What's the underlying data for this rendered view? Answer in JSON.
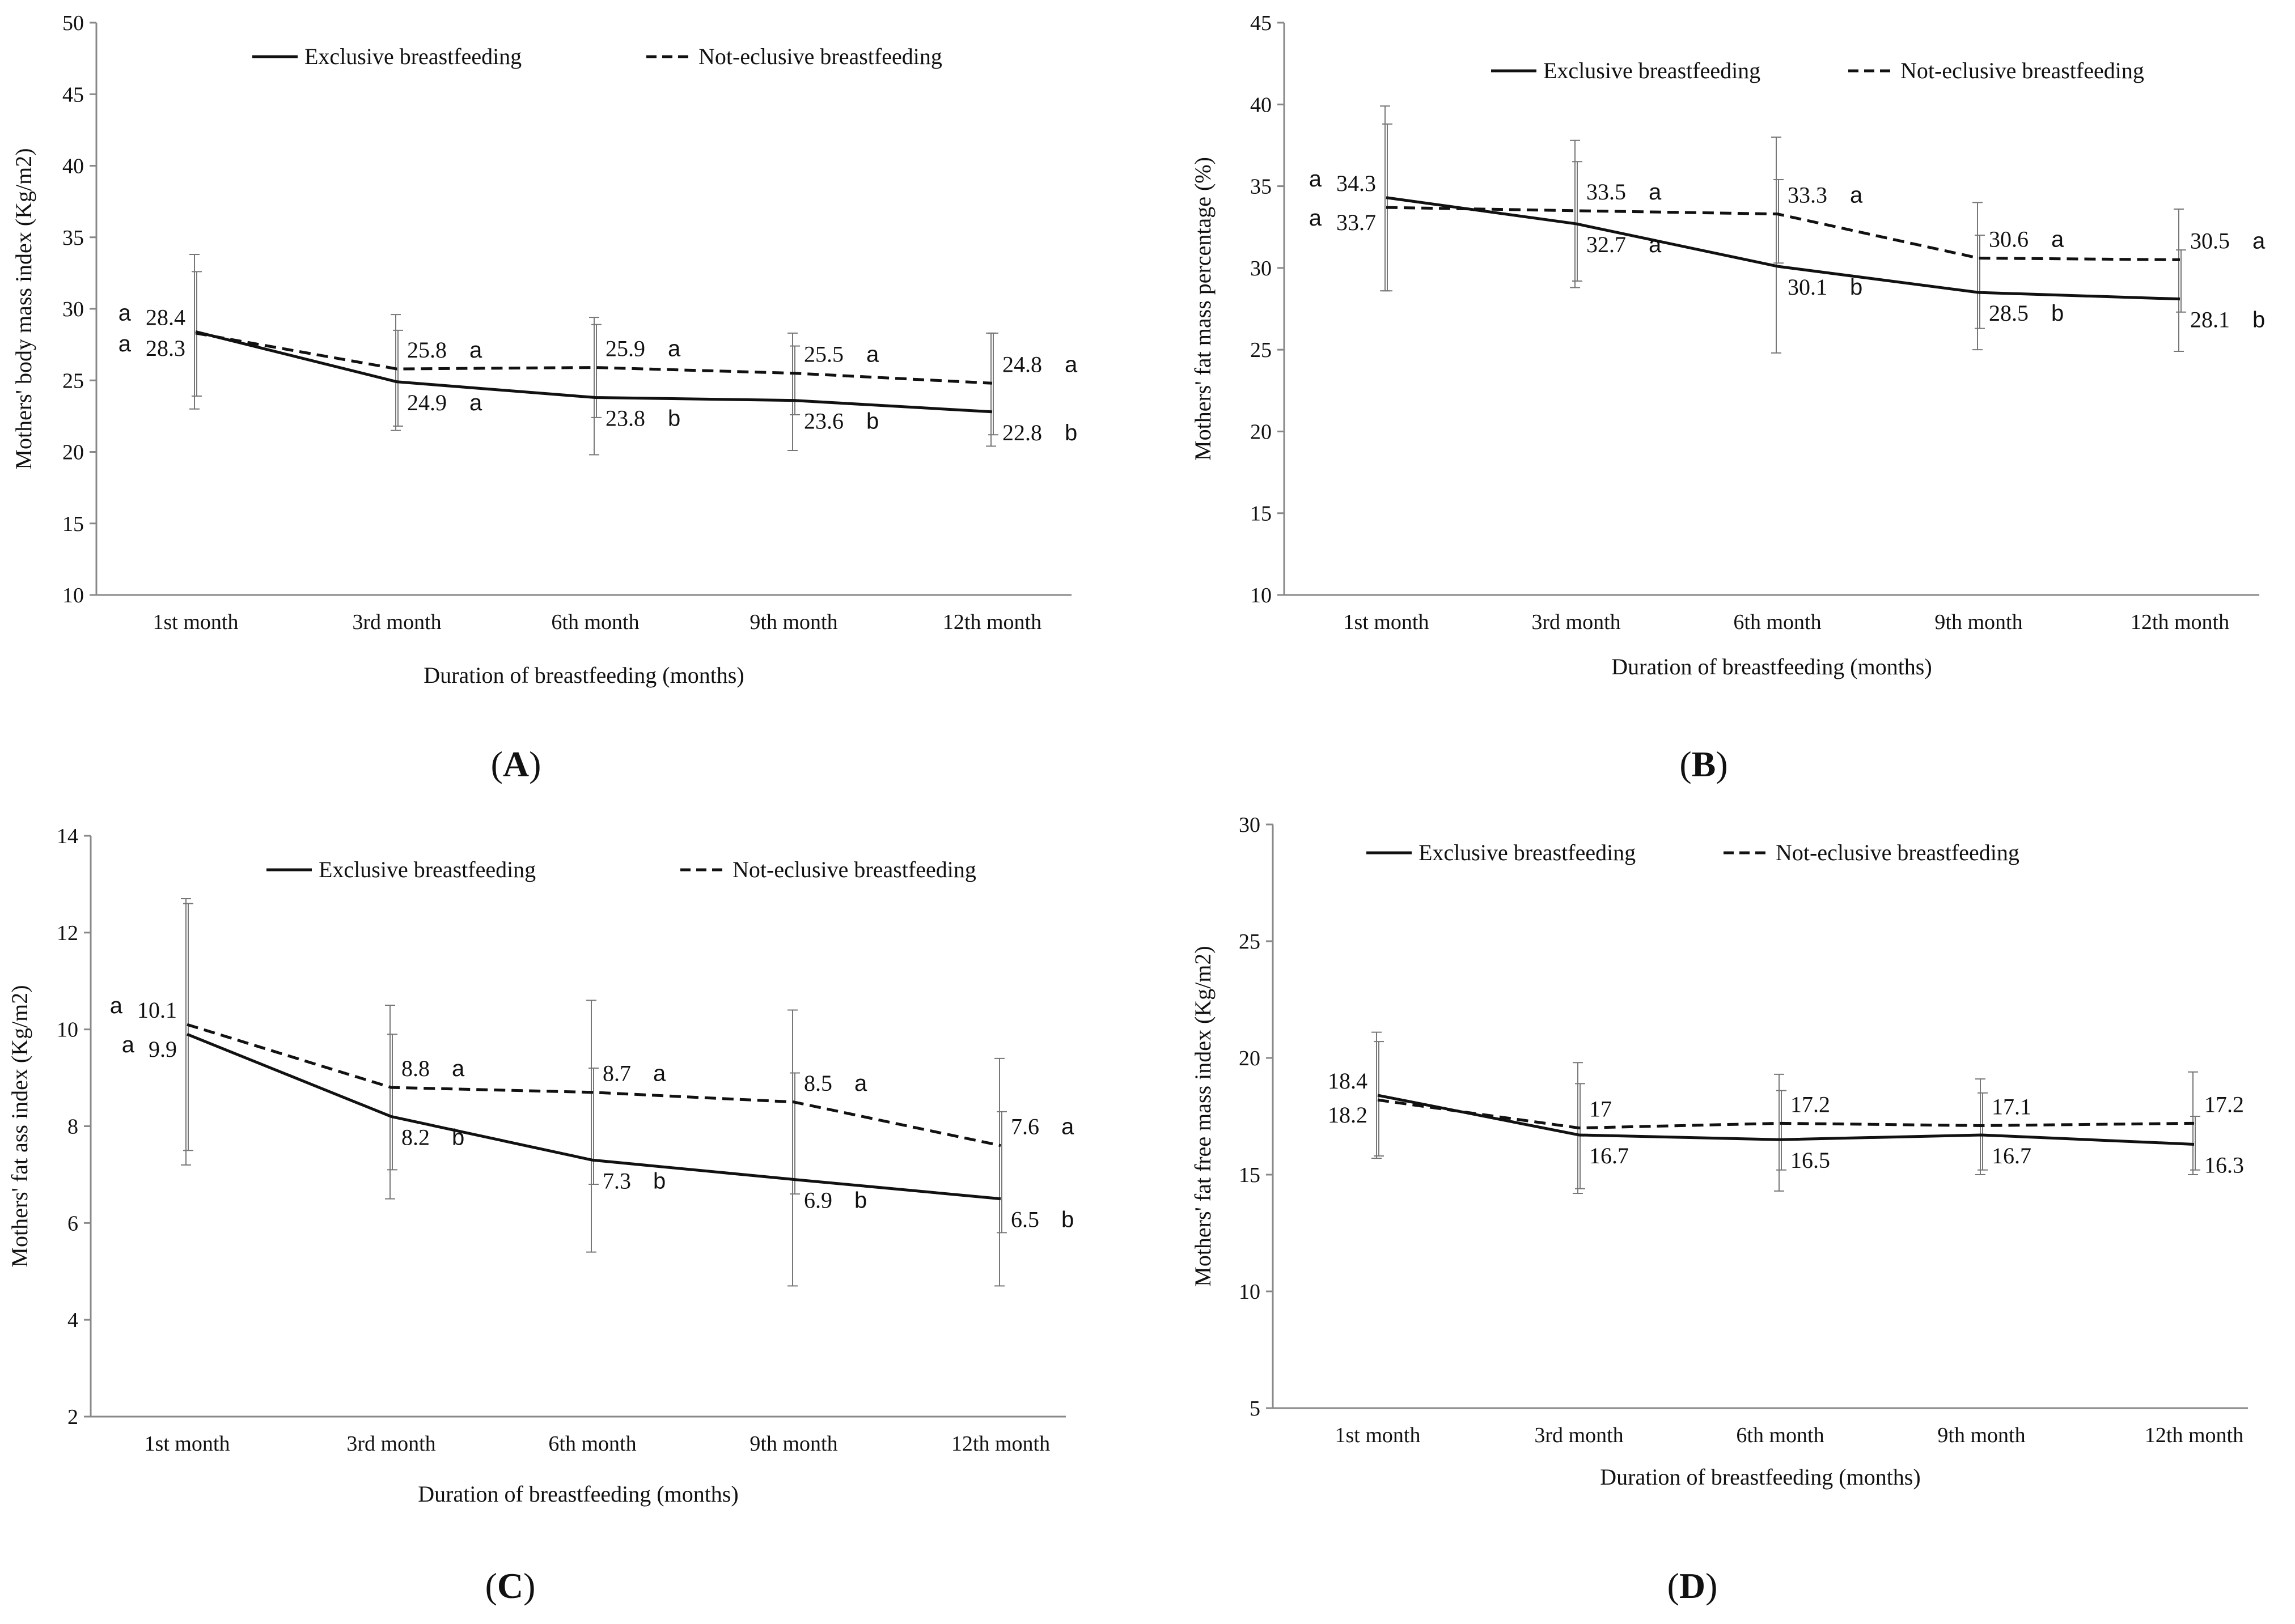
{
  "chart_data": [
    {
      "panel": "A",
      "type": "line",
      "categories": [
        "1st month",
        "3rd month",
        "6th month",
        "9th month",
        "12th month"
      ],
      "xlabel": "Duration of breastfeeding (months)",
      "ylabel": "Mothers' body mass index (Kg/m2)",
      "ylim": [
        10,
        50
      ],
      "yticks": [
        10,
        15,
        20,
        25,
        30,
        35,
        40,
        45,
        50
      ],
      "legend_placement": "top",
      "series": [
        {
          "name": "Exclusive breastfeeding",
          "style": "solid",
          "values": [
            28.4,
            24.9,
            23.8,
            23.6,
            22.8
          ],
          "labels": [
            "28.4",
            "24.9",
            "23.8",
            "23.6",
            "22.8"
          ],
          "letters": [
            "a",
            "a",
            "b",
            "b",
            "b"
          ],
          "error_low": [
            23.0,
            21.5,
            19.8,
            20.1,
            20.4
          ],
          "error_high": [
            33.8,
            29.6,
            29.4,
            28.3,
            28.3
          ]
        },
        {
          "name": "Not-eclusive breastfeeding",
          "style": "dashed",
          "values": [
            28.3,
            25.8,
            25.9,
            25.5,
            24.8
          ],
          "labels": [
            "28.3",
            "25.8",
            "25.9",
            "25.5",
            "24.8"
          ],
          "letters": [
            "a",
            "a",
            "a",
            "a",
            "a"
          ],
          "error_low": [
            23.9,
            21.8,
            22.4,
            22.6,
            21.2
          ],
          "error_high": [
            32.6,
            28.5,
            28.9,
            27.4,
            28.3
          ]
        }
      ]
    },
    {
      "panel": "B",
      "type": "line",
      "categories": [
        "1st month",
        "3rd month",
        "6th month",
        "9th month",
        "12th month"
      ],
      "xlabel": "Duration of breastfeeding (months)",
      "ylabel": "Mothers' fat mass percentage (%)",
      "ylim": [
        10,
        45
      ],
      "yticks": [
        10,
        15,
        20,
        25,
        30,
        35,
        40,
        45
      ],
      "legend_placement": "top",
      "series": [
        {
          "name": "Exclusive breastfeeding",
          "style": "solid",
          "values": [
            34.3,
            32.7,
            30.1,
            28.5,
            28.1
          ],
          "labels": [
            "34.3",
            "32.7",
            "30.1",
            "28.5",
            "28.1"
          ],
          "letters": [
            "a",
            "a",
            "b",
            "b",
            "b"
          ],
          "error_low": [
            28.6,
            28.8,
            24.8,
            25.0,
            24.9
          ],
          "error_high": [
            39.9,
            37.8,
            38.0,
            34.0,
            33.6
          ]
        },
        {
          "name": "Not-eclusive breastfeeding",
          "style": "dashed",
          "values": [
            33.7,
            33.5,
            33.3,
            30.6,
            30.5
          ],
          "labels": [
            "33.7",
            "33.5",
            "33.3",
            "30.6",
            "30.5"
          ],
          "letters": [
            "a",
            "a",
            "a",
            "a",
            "a"
          ],
          "error_low": [
            28.6,
            29.2,
            30.3,
            26.3,
            27.3
          ],
          "error_high": [
            38.8,
            36.5,
            35.4,
            32.0,
            31.1
          ]
        }
      ]
    },
    {
      "panel": "C",
      "type": "line",
      "categories": [
        "1st month",
        "3rd month",
        "6th month",
        "9th month",
        "12th month"
      ],
      "xlabel": "Duration of breastfeeding (months)",
      "ylabel": "Mothers' fat ass index (Kg/m2)",
      "ylim": [
        2,
        14
      ],
      "yticks": [
        2,
        4,
        6,
        8,
        10,
        12,
        14
      ],
      "legend_placement": "top",
      "series": [
        {
          "name": "Exclusive breastfeeding",
          "style": "solid",
          "values": [
            9.9,
            8.2,
            7.3,
            6.9,
            6.5
          ],
          "labels": [
            "9.9",
            "8.2",
            "7.3",
            "6.9",
            "6.5"
          ],
          "letters": [
            "a",
            "b",
            "b",
            "b",
            "b"
          ],
          "error_low": [
            7.2,
            6.5,
            5.4,
            4.7,
            4.7
          ],
          "error_high": [
            12.7,
            10.5,
            10.6,
            10.4,
            9.4
          ]
        },
        {
          "name": "Not-eclusive breastfeeding",
          "style": "dashed",
          "values": [
            10.1,
            8.8,
            8.7,
            8.5,
            7.6
          ],
          "labels": [
            "10.1",
            "8.8",
            "8.7",
            "8.5",
            "7.6"
          ],
          "letters": [
            "a",
            "a",
            "a",
            "a",
            "a"
          ],
          "error_low": [
            7.5,
            7.1,
            6.8,
            6.6,
            5.8
          ],
          "error_high": [
            12.6,
            9.9,
            9.2,
            9.1,
            8.3
          ]
        }
      ]
    },
    {
      "panel": "D",
      "type": "line",
      "categories": [
        "1st month",
        "3rd month",
        "6th month",
        "9th month",
        "12th month"
      ],
      "xlabel": "Duration of breastfeeding (months)",
      "ylabel": "Mothers' fat free mass index (Kg/m2)",
      "ylim": [
        5,
        30
      ],
      "yticks": [
        5,
        10,
        15,
        20,
        25,
        30
      ],
      "legend_placement": "top",
      "series": [
        {
          "name": "Exclusive breastfeeding",
          "style": "solid",
          "values": [
            18.4,
            16.7,
            16.5,
            16.7,
            16.3
          ],
          "labels": [
            "18.4",
            "16.7",
            "16.5",
            "16.7",
            "16.3"
          ],
          "letters": [
            "",
            "",
            "",
            "",
            ""
          ],
          "error_low": [
            15.7,
            14.2,
            14.3,
            15.0,
            15.0
          ],
          "error_high": [
            21.1,
            19.8,
            19.3,
            19.1,
            19.4
          ]
        },
        {
          "name": "Not-eclusive breastfeeding",
          "style": "dashed",
          "values": [
            18.2,
            17.0,
            17.2,
            17.1,
            17.2
          ],
          "labels": [
            "18.2",
            "17",
            "17.2",
            "17.1",
            "17.2"
          ],
          "letters": [
            "",
            "",
            "",
            "",
            ""
          ],
          "error_low": [
            15.8,
            14.4,
            15.2,
            15.2,
            15.2
          ],
          "error_high": [
            20.7,
            18.9,
            18.6,
            18.5,
            17.5
          ]
        }
      ]
    }
  ],
  "panel_labels": [
    "A",
    "B",
    "C",
    "D"
  ]
}
